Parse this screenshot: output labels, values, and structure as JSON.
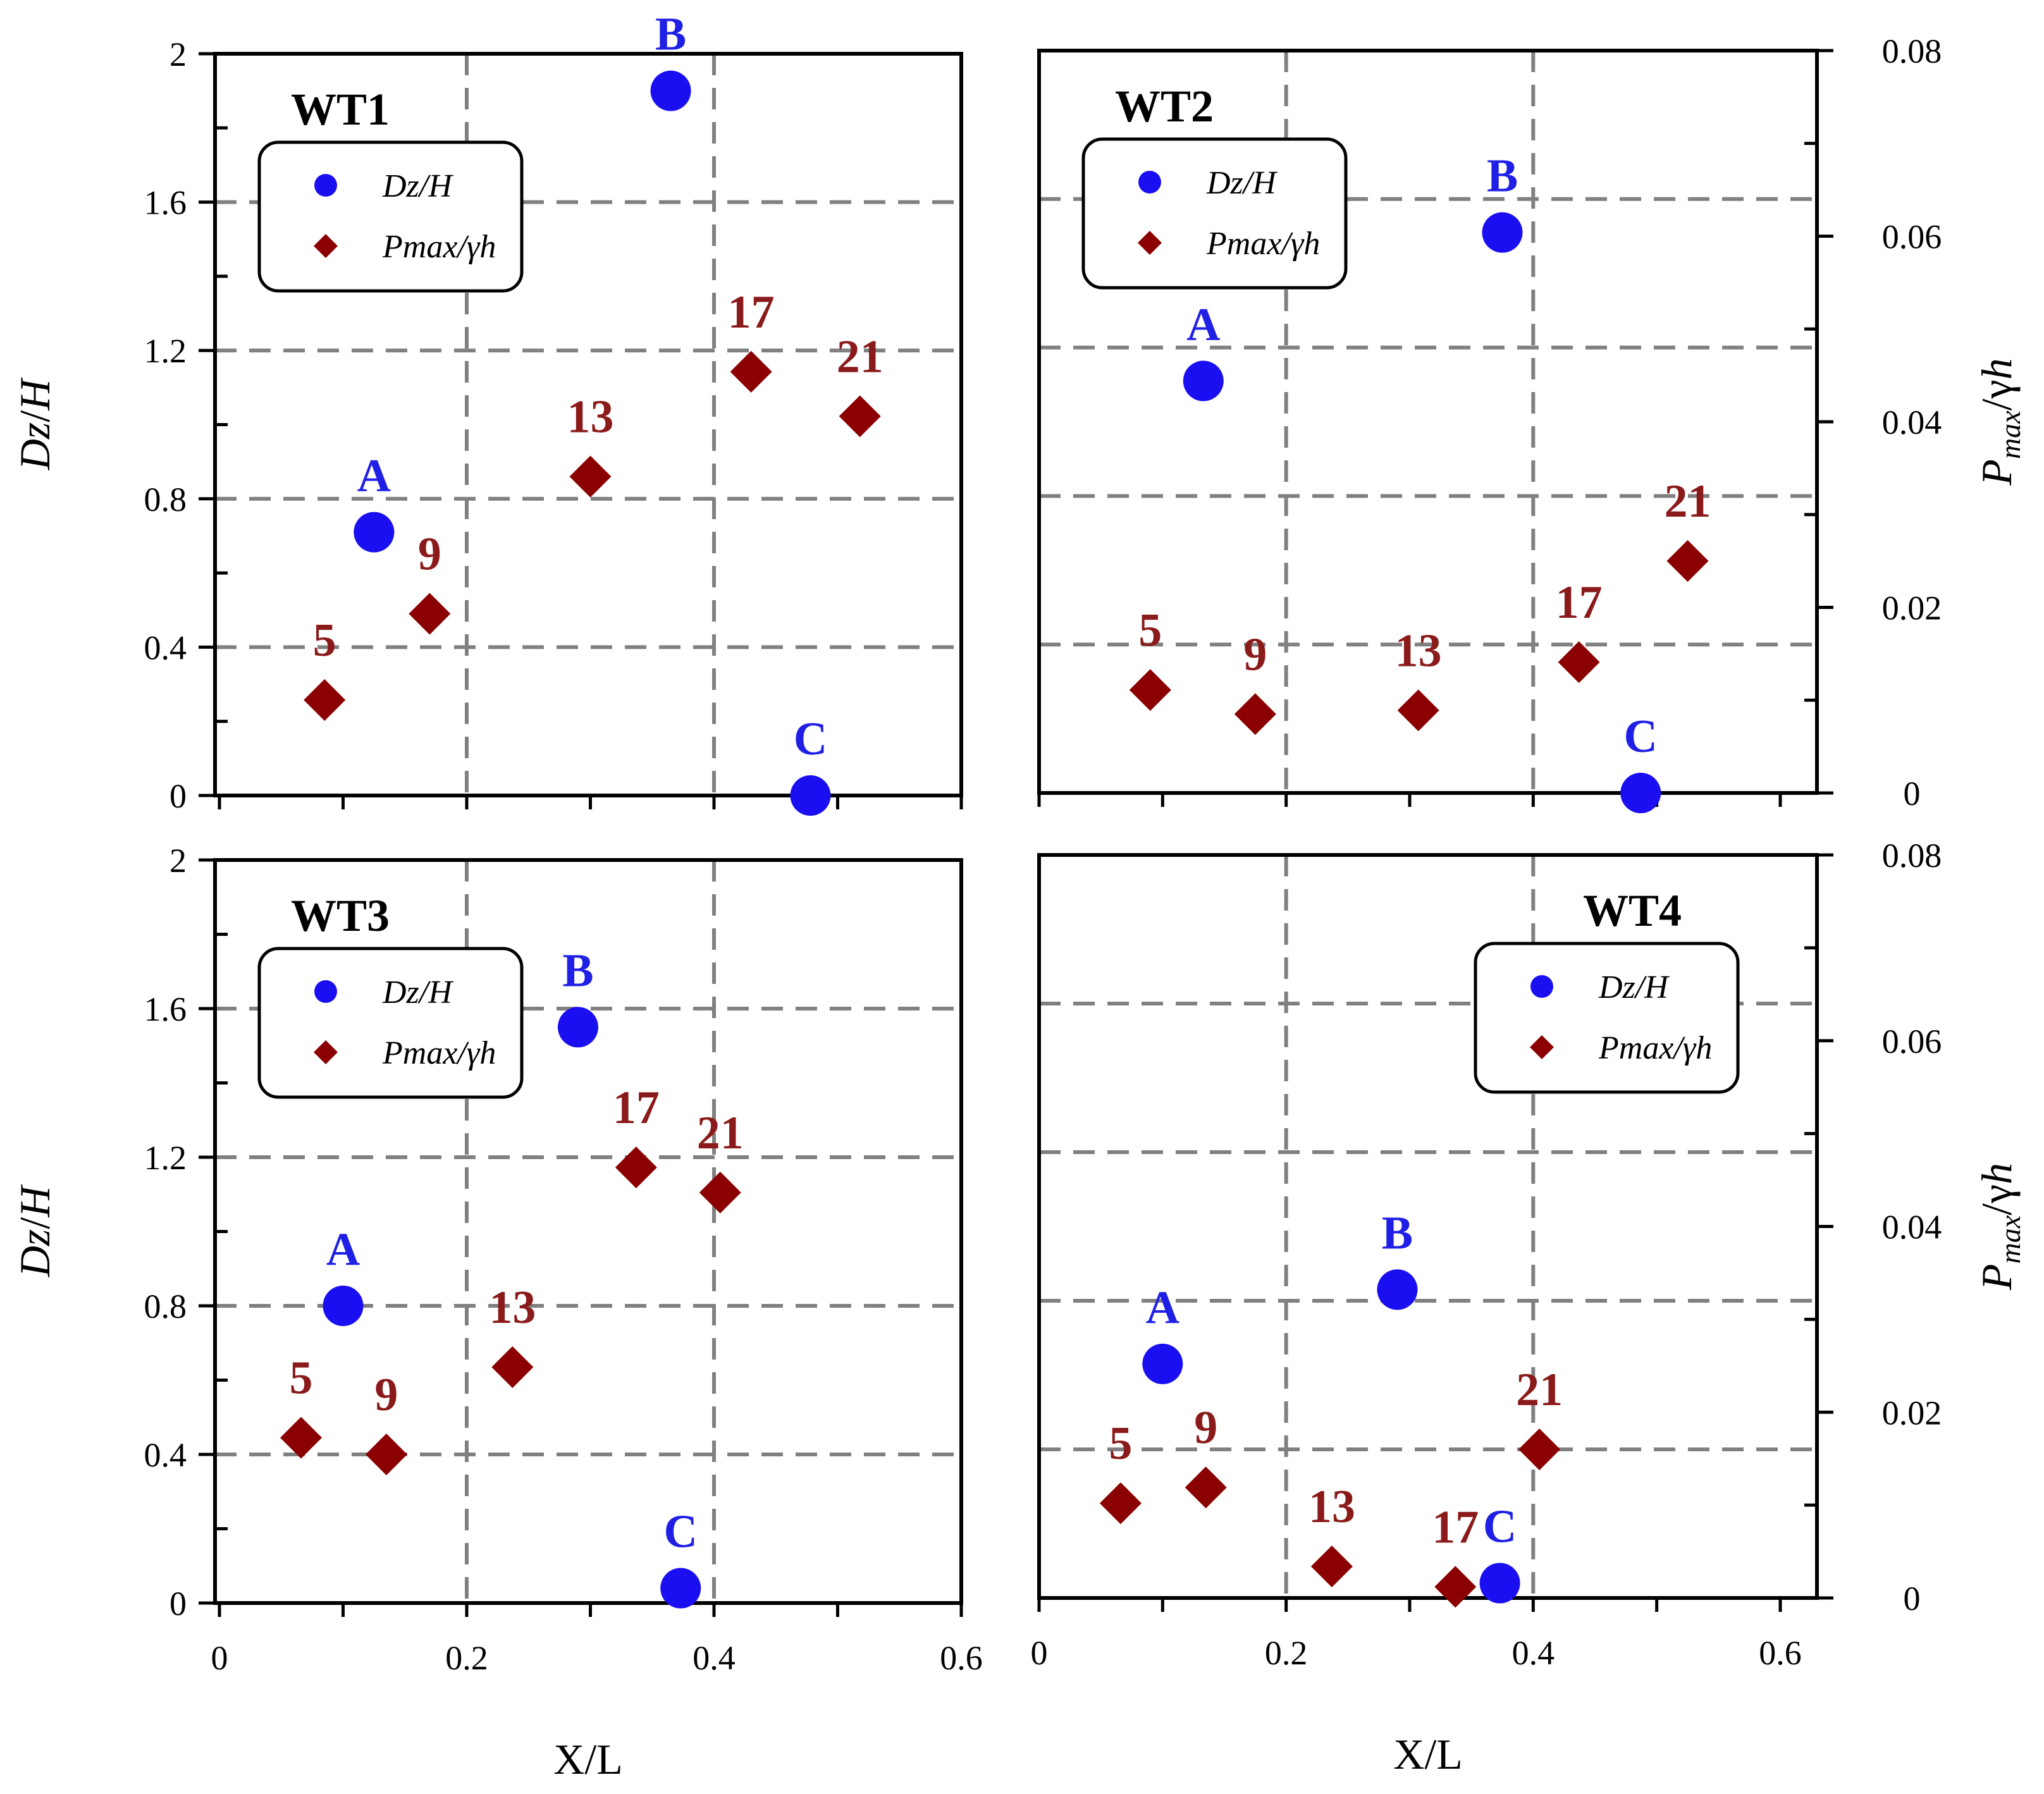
{
  "colors": {
    "dz": "#1a0ff0",
    "dz_label": "#1f1fe6",
    "p": "#8b0000",
    "p_label": "#8b1a1a",
    "grid": "#808080",
    "axis": "#000000"
  },
  "chart_data": {
    "type": "scatter",
    "xlabel": "X/L",
    "ylabel_left": "Dz/H",
    "ylabel_right": "Pmax/γh",
    "xlim": [
      0,
      0.6
    ],
    "ylim_left": [
      0,
      2
    ],
    "ylim_right": [
      0,
      0.08
    ],
    "x_ticks": [
      "0",
      "0.2",
      "0.4",
      "0.6"
    ],
    "y_left_ticks": [
      "0",
      "0.4",
      "0.8",
      "1.2",
      "1.6",
      "2"
    ],
    "y_right_ticks": [
      "0",
      "0.02",
      "0.04",
      "0.06",
      "0.08"
    ],
    "legend": [
      {
        "name": "Dz/H",
        "marker": "circle"
      },
      {
        "name": "Pmax/γh",
        "marker": "diamond"
      }
    ],
    "panels": [
      {
        "title": "WT1",
        "legend_position": "upper-left",
        "dz_points": [
          {
            "label": "A",
            "x": 0.125,
            "y": 0.71
          },
          {
            "label": "B",
            "x": 0.365,
            "y": 1.9
          },
          {
            "label": "C",
            "x": 0.478,
            "y": 0.0
          }
        ],
        "pmax_points": [
          {
            "label": "5",
            "x": 0.085,
            "y": 0.0103
          },
          {
            "label": "9",
            "x": 0.17,
            "y": 0.0196
          },
          {
            "label": "13",
            "x": 0.3,
            "y": 0.0344
          },
          {
            "label": "17",
            "x": 0.43,
            "y": 0.0457
          },
          {
            "label": "21",
            "x": 0.518,
            "y": 0.0409
          }
        ]
      },
      {
        "title": "WT2",
        "legend_position": "upper-left",
        "dz_points": [
          {
            "label": "A",
            "x": 0.133,
            "y": 1.11
          },
          {
            "label": "B",
            "x": 0.375,
            "y": 1.51
          },
          {
            "label": "C",
            "x": 0.487,
            "y": 0.0
          }
        ],
        "pmax_points": [
          {
            "label": "5",
            "x": 0.09,
            "y": 0.0111
          },
          {
            "label": "9",
            "x": 0.175,
            "y": 0.0085
          },
          {
            "label": "13",
            "x": 0.307,
            "y": 0.0089
          },
          {
            "label": "17",
            "x": 0.437,
            "y": 0.0141
          },
          {
            "label": "21",
            "x": 0.525,
            "y": 0.025
          }
        ]
      },
      {
        "title": "WT3",
        "legend_position": "upper-left",
        "dz_points": [
          {
            "label": "A",
            "x": 0.1,
            "y": 0.8
          },
          {
            "label": "B",
            "x": 0.29,
            "y": 1.55
          },
          {
            "label": "C",
            "x": 0.373,
            "y": 0.04
          }
        ],
        "pmax_points": [
          {
            "label": "5",
            "x": 0.066,
            "y": 0.0178
          },
          {
            "label": "9",
            "x": 0.135,
            "y": 0.016
          },
          {
            "label": "13",
            "x": 0.237,
            "y": 0.0254
          },
          {
            "label": "17",
            "x": 0.337,
            "y": 0.0469
          },
          {
            "label": "21",
            "x": 0.405,
            "y": 0.0442
          }
        ]
      },
      {
        "title": "WT4",
        "legend_position": "upper-right",
        "dz_points": [
          {
            "label": "A",
            "x": 0.1,
            "y": 0.63
          },
          {
            "label": "B",
            "x": 0.29,
            "y": 0.83
          },
          {
            "label": "C",
            "x": 0.373,
            "y": 0.04
          }
        ],
        "pmax_points": [
          {
            "label": "5",
            "x": 0.066,
            "y": 0.0102
          },
          {
            "label": "9",
            "x": 0.135,
            "y": 0.0119
          },
          {
            "label": "13",
            "x": 0.237,
            "y": 0.0034
          },
          {
            "label": "17",
            "x": 0.337,
            "y": 0.0012
          },
          {
            "label": "21",
            "x": 0.405,
            "y": 0.016
          }
        ]
      }
    ]
  }
}
